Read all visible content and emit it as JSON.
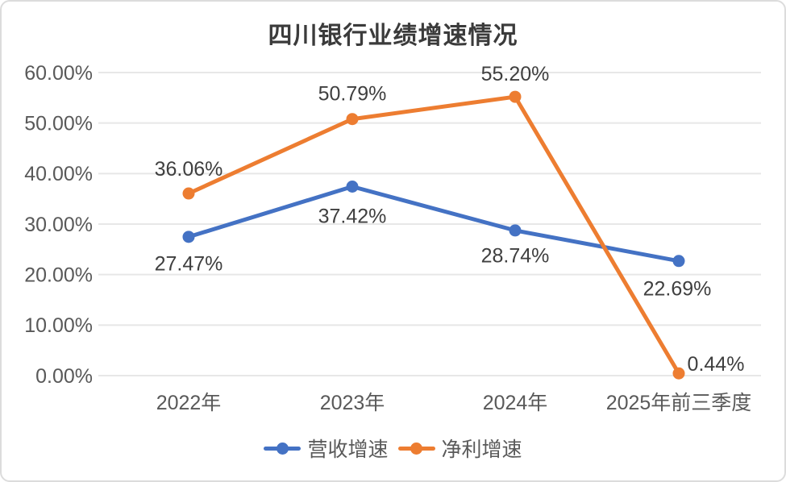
{
  "chart_data": {
    "type": "line",
    "title": "四川银行业绩增速情况",
    "categories": [
      "2022年",
      "2023年",
      "2024年",
      "2025年前三季度"
    ],
    "series": [
      {
        "name": "营收增速",
        "color": "#4472C4",
        "values": [
          27.47,
          37.42,
          28.74,
          22.69
        ],
        "labels": [
          "27.47%",
          "37.42%",
          "28.74%",
          "22.69%"
        ]
      },
      {
        "name": "净利增速",
        "color": "#ED7D31",
        "values": [
          36.06,
          50.79,
          55.2,
          0.44
        ],
        "labels": [
          "36.06%",
          "50.79%",
          "55.20%",
          "0.44%"
        ]
      }
    ],
    "y_axis": {
      "min": 0,
      "max": 60,
      "step": 10,
      "tick_labels": [
        "60.00%",
        "50.00%",
        "40.00%",
        "30.00%",
        "20.00%",
        "10.00%",
        "0.00%"
      ]
    },
    "xlabel": "",
    "ylabel": "",
    "ylim": [
      0,
      60
    ],
    "grid": true,
    "legend_position": "bottom",
    "colors": {
      "grid": "#e7e7e7",
      "axis_text": "#595959",
      "data_label_text": "#3f3f3f",
      "title_text": "#3b3b3b",
      "card_border": "#dcdcdc",
      "background": "#ffffff"
    }
  }
}
